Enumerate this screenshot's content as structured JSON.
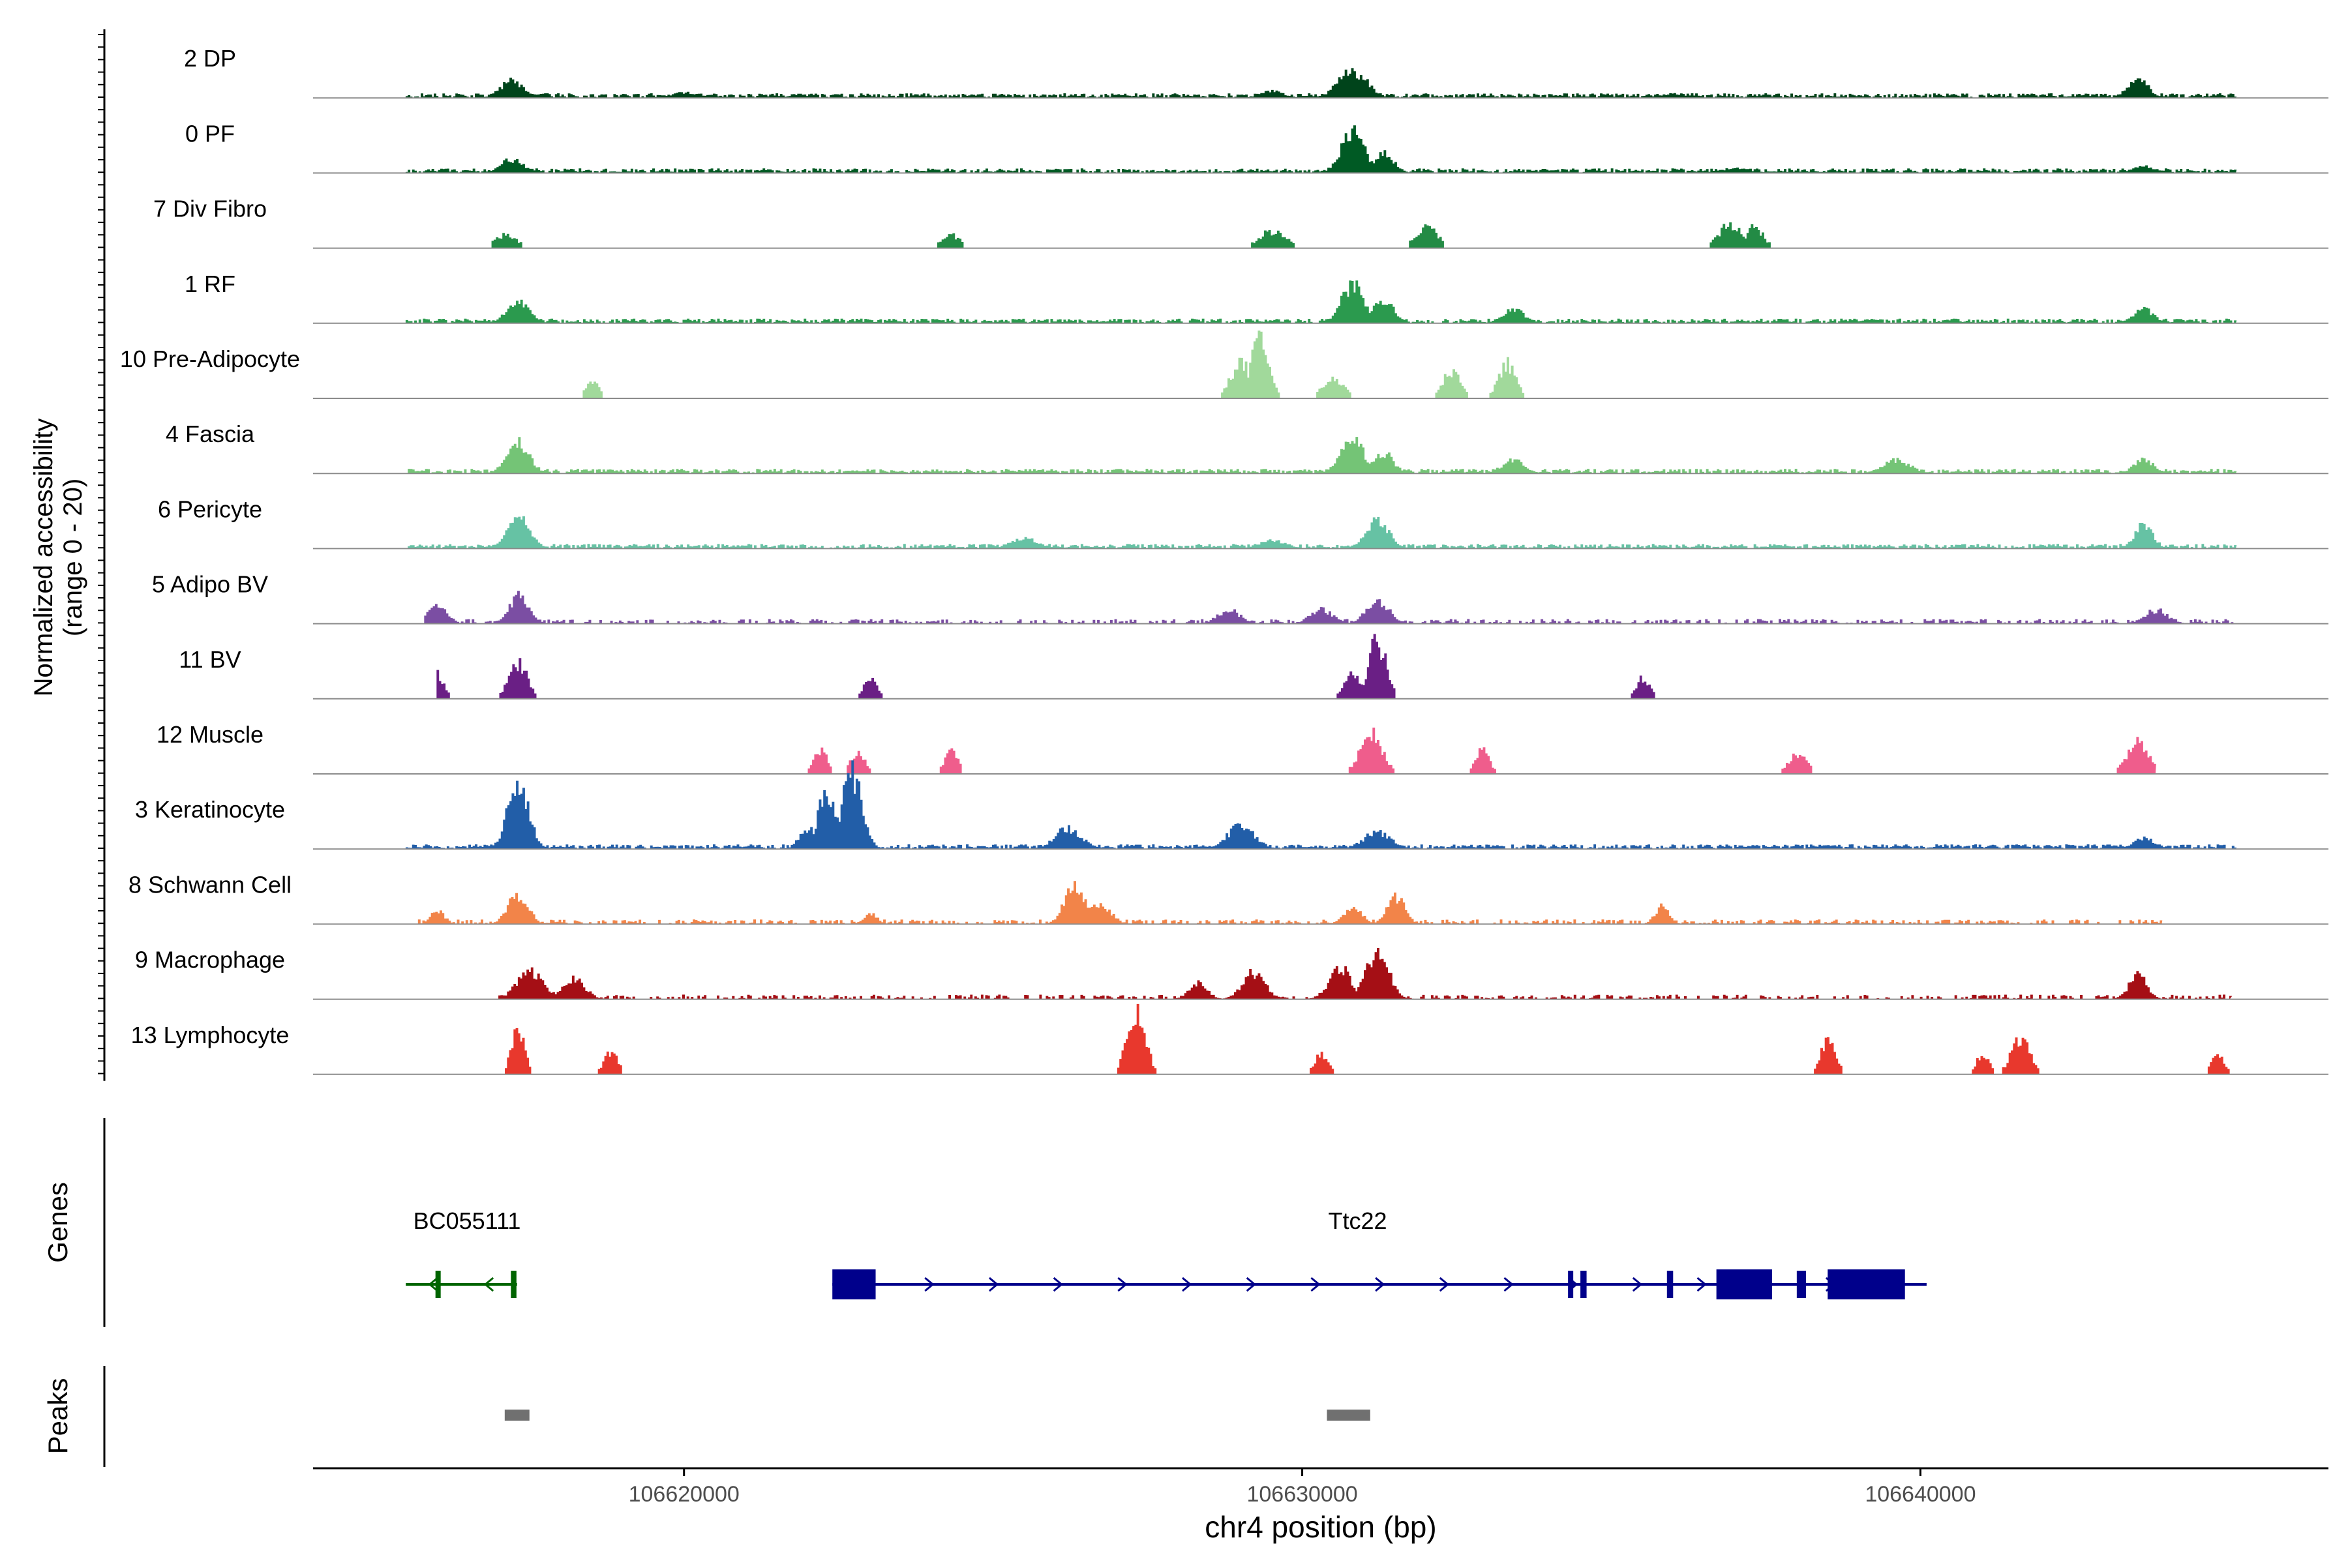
{
  "chart_data": {
    "type": "coverage",
    "title": "",
    "ylabel_lines": [
      "Normalized accessibility",
      "(range 0 - 20)"
    ],
    "y_range": [
      0,
      20
    ],
    "xlabel": "chr4 position (bp)",
    "x_range": [
      106614000,
      106646600
    ],
    "x_ticks": [
      106620000,
      106630000,
      106640000
    ],
    "x_tick_labels": [
      "106620000",
      "106630000",
      "106640000"
    ],
    "track_labels": {
      "genes": "Genes",
      "peaks": "Peaks"
    },
    "series": [
      {
        "name": "2 DP",
        "color": "#00441b",
        "extent": [
          106615500,
          106645100
        ],
        "density": 0.85,
        "peaks": [
          [
            106617200,
            5,
            260
          ],
          [
            106630800,
            8,
            320
          ],
          [
            106643500,
            6,
            220
          ],
          [
            106629500,
            2,
            250
          ],
          [
            106620000,
            1.5,
            300
          ],
          [
            106636000,
            1.2,
            300
          ]
        ]
      },
      {
        "name": "0 PF",
        "color": "#005a24",
        "extent": [
          106615500,
          106645100
        ],
        "density": 0.85,
        "peaks": [
          [
            106617200,
            4,
            260
          ],
          [
            106630800,
            12,
            260
          ],
          [
            106631300,
            6,
            220
          ],
          [
            106643600,
            2,
            250
          ],
          [
            106637000,
            1.5,
            300
          ]
        ]
      },
      {
        "name": "7 Div Fibro",
        "color": "#238b45",
        "extent": [
          106615700,
          106644000
        ],
        "density": 0.3,
        "peaks": [
          [
            106617100,
            4,
            250
          ],
          [
            106629500,
            5,
            300
          ],
          [
            106632000,
            6,
            250
          ],
          [
            106636900,
            7,
            250
          ],
          [
            106637300,
            6,
            200
          ],
          [
            106624300,
            4,
            200
          ]
        ]
      },
      {
        "name": "1 RF",
        "color": "#2b9a4e",
        "extent": [
          106615500,
          106645100
        ],
        "density": 0.85,
        "peaks": [
          [
            106617300,
            6,
            250
          ],
          [
            106630800,
            11,
            260
          ],
          [
            106631300,
            7,
            220
          ],
          [
            106633400,
            4,
            250
          ],
          [
            106643600,
            4,
            220
          ]
        ]
      },
      {
        "name": "10 Pre-Adipocyte",
        "color": "#a1d99b",
        "extent": [
          106617000,
          106644200
        ],
        "density": 0.25,
        "peaks": [
          [
            106629300,
            17,
            200
          ],
          [
            106629000,
            10,
            250
          ],
          [
            106630500,
            6,
            250
          ],
          [
            106632400,
            8,
            200
          ],
          [
            106633300,
            10,
            200
          ],
          [
            106618500,
            5,
            150
          ]
        ]
      },
      {
        "name": "4 Fascia",
        "color": "#74c476",
        "extent": [
          106615500,
          106645100
        ],
        "density": 0.85,
        "peaks": [
          [
            106617300,
            9,
            250
          ],
          [
            106630800,
            10,
            260
          ],
          [
            106631300,
            6,
            220
          ],
          [
            106633400,
            4,
            250
          ],
          [
            106639600,
            4,
            300
          ],
          [
            106643600,
            4,
            220
          ]
        ]
      },
      {
        "name": "6 Pericyte",
        "color": "#66c2a4",
        "extent": [
          106615500,
          106645100
        ],
        "density": 0.85,
        "peaks": [
          [
            106617300,
            9,
            260
          ],
          [
            106631200,
            8,
            260
          ],
          [
            106643600,
            7,
            200
          ],
          [
            106625500,
            3,
            300
          ],
          [
            106629500,
            2.5,
            300
          ]
        ]
      },
      {
        "name": "5 Adipo BV",
        "color": "#7b4ea3",
        "extent": [
          106615800,
          106645100
        ],
        "density": 0.55,
        "peaks": [
          [
            106617300,
            8,
            220
          ],
          [
            106616000,
            6,
            200
          ],
          [
            106631200,
            7,
            250
          ],
          [
            106630300,
            4,
            250
          ],
          [
            106628800,
            4,
            250
          ],
          [
            106643800,
            4,
            250
          ]
        ]
      },
      {
        "name": "11 BV",
        "color": "#6a1f85",
        "extent": [
          106616000,
          106644400
        ],
        "density": 0.18,
        "peaks": [
          [
            106631200,
            17,
            200
          ],
          [
            106617300,
            11,
            200
          ],
          [
            106616000,
            7,
            150
          ],
          [
            106623000,
            6,
            150
          ],
          [
            106635500,
            6,
            150
          ],
          [
            106630800,
            7,
            200
          ]
        ]
      },
      {
        "name": "12 Muscle",
        "color": "#ef5d8c",
        "extent": [
          106616300,
          106643800
        ],
        "density": 0.25,
        "peaks": [
          [
            106631100,
            12,
            250
          ],
          [
            106643500,
            9,
            250
          ],
          [
            106622200,
            7,
            150
          ],
          [
            106622800,
            7,
            150
          ],
          [
            106624300,
            7,
            150
          ],
          [
            106632900,
            7,
            150
          ],
          [
            106638000,
            6,
            200
          ]
        ]
      },
      {
        "name": "3 Keratinocyte",
        "color": "#225ea8",
        "extent": [
          106615500,
          106645100
        ],
        "density": 0.85,
        "peaks": [
          [
            106617300,
            20,
            230
          ],
          [
            106622300,
            16,
            220
          ],
          [
            106622700,
            22,
            230
          ],
          [
            106622000,
            6,
            200
          ],
          [
            106626200,
            6,
            300
          ],
          [
            106629000,
            7,
            300
          ],
          [
            106631200,
            5,
            300
          ],
          [
            106643600,
            3,
            250
          ]
        ]
      },
      {
        "name": "8 Schwann Cell",
        "color": "#f28449",
        "extent": [
          106615700,
          106643900
        ],
        "density": 0.55,
        "peaks": [
          [
            106617300,
            9,
            220
          ],
          [
            106626300,
            12,
            220
          ],
          [
            106626700,
            6,
            250
          ],
          [
            106631500,
            8,
            200
          ],
          [
            106630800,
            5,
            200
          ],
          [
            106635800,
            5,
            150
          ],
          [
            106616000,
            4,
            150
          ],
          [
            106623000,
            3,
            150
          ]
        ]
      },
      {
        "name": "9 Macrophage",
        "color": "#a50f15",
        "extent": [
          106617000,
          106645000
        ],
        "density": 0.45,
        "peaks": [
          [
            106631200,
            14,
            250
          ],
          [
            106630600,
            9,
            250
          ],
          [
            106617500,
            8,
            300
          ],
          [
            106618200,
            6,
            250
          ],
          [
            106629200,
            8,
            250
          ],
          [
            106643500,
            7,
            200
          ],
          [
            106628300,
            5,
            200
          ]
        ]
      },
      {
        "name": "13 Lymphocyte",
        "color": "#e8382d",
        "extent": [
          106615600,
          106645000
        ],
        "density": 0.12,
        "peaks": [
          [
            106627300,
            20,
            200
          ],
          [
            106617300,
            13,
            150
          ],
          [
            106638500,
            12,
            150
          ],
          [
            106641600,
            11,
            200
          ],
          [
            106641000,
            6,
            150
          ],
          [
            106618800,
            7,
            150
          ],
          [
            106630300,
            6,
            150
          ],
          [
            106644800,
            6,
            150
          ]
        ]
      }
    ],
    "genes": [
      {
        "name": "BC055111",
        "strand": "-",
        "color": "#006400",
        "start": 106615500,
        "end": 106617300,
        "exons": [
          [
            106615980,
            106616050
          ],
          [
            106617200,
            106617290
          ]
        ]
      },
      {
        "name": "Ttc22",
        "strand": "+",
        "color": "#00008b",
        "start": 106622400,
        "end": 106640100,
        "exons": [
          [
            106622400,
            106623100
          ],
          [
            106634300,
            106634350
          ],
          [
            106634500,
            106634600
          ],
          [
            106635900,
            106636000
          ],
          [
            106636700,
            106637600
          ],
          [
            106638000,
            106638150
          ],
          [
            106638500,
            106639750
          ]
        ]
      }
    ],
    "peaks_track": {
      "color": "#707070",
      "regions": [
        [
          106617100,
          106617500
        ],
        [
          106630400,
          106631100
        ]
      ]
    }
  }
}
